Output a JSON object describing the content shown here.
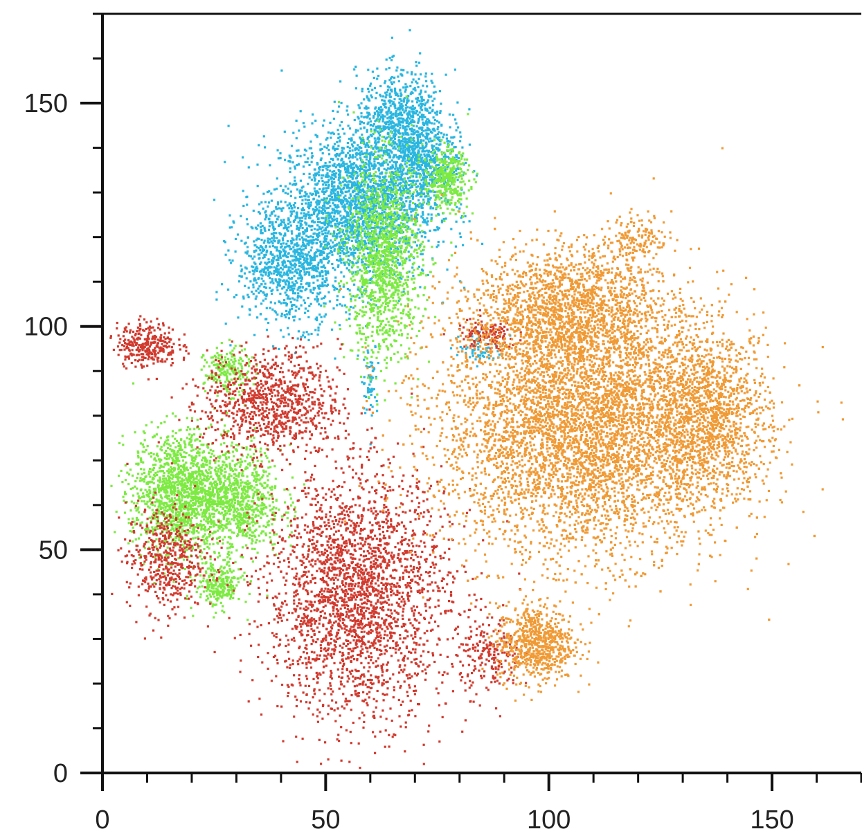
{
  "chart_data": {
    "type": "scatter",
    "title": "",
    "xlabel": "",
    "ylabel": "",
    "xlim": [
      0,
      170
    ],
    "ylim": [
      0,
      170
    ],
    "x_ticks": [
      0,
      50,
      100,
      150
    ],
    "y_ticks": [
      0,
      50,
      100,
      150
    ],
    "x_minor_step": 10,
    "y_minor_step": 10,
    "grid": false,
    "legend": "none",
    "series": [
      {
        "color": "#29b6e0",
        "clusters": [
          {
            "cx": 57,
            "cy": 127,
            "sx": 10,
            "sy": 10,
            "n": 2200
          },
          {
            "cx": 67,
            "cy": 145,
            "sx": 6,
            "sy": 7,
            "n": 900
          },
          {
            "cx": 42,
            "cy": 114,
            "sx": 7,
            "sy": 8,
            "n": 900
          },
          {
            "cx": 72,
            "cy": 135,
            "sx": 5,
            "sy": 5,
            "n": 400
          },
          {
            "cx": 60,
            "cy": 88,
            "sx": 1,
            "sy": 5,
            "n": 60
          },
          {
            "cx": 85,
            "cy": 95,
            "sx": 3,
            "sy": 2,
            "n": 60
          }
        ]
      },
      {
        "color": "#7dea42",
        "clusters": [
          {
            "cx": 63,
            "cy": 115,
            "sx": 5,
            "sy": 13,
            "n": 1300
          },
          {
            "cx": 77,
            "cy": 133,
            "sx": 3,
            "sy": 4,
            "n": 350
          },
          {
            "cx": 17,
            "cy": 63,
            "sx": 6,
            "sy": 8,
            "n": 1300
          },
          {
            "cx": 30,
            "cy": 61,
            "sx": 6,
            "sy": 7,
            "n": 900
          },
          {
            "cx": 26,
            "cy": 42,
            "sx": 3,
            "sy": 3,
            "n": 250
          },
          {
            "cx": 28,
            "cy": 90,
            "sx": 3,
            "sy": 3,
            "n": 200
          }
        ]
      },
      {
        "color": "#d13a2e",
        "clusters": [
          {
            "cx": 57,
            "cy": 40,
            "sx": 12,
            "sy": 16,
            "n": 2600
          },
          {
            "cx": 38,
            "cy": 83,
            "sx": 9,
            "sy": 7,
            "n": 900
          },
          {
            "cx": 14,
            "cy": 48,
            "sx": 5,
            "sy": 7,
            "n": 500
          },
          {
            "cx": 10,
            "cy": 96,
            "sx": 4,
            "sy": 3,
            "n": 300
          },
          {
            "cx": 87,
            "cy": 26,
            "sx": 4,
            "sy": 5,
            "n": 200
          },
          {
            "cx": 86,
            "cy": 98,
            "sx": 4,
            "sy": 2,
            "n": 120
          }
        ]
      },
      {
        "color": "#f09a35",
        "clusters": [
          {
            "cx": 108,
            "cy": 78,
            "sx": 19,
            "sy": 17,
            "n": 6500
          },
          {
            "cx": 136,
            "cy": 80,
            "sx": 8,
            "sy": 11,
            "n": 1200
          },
          {
            "cx": 104,
            "cy": 104,
            "sx": 12,
            "sy": 8,
            "n": 1500
          },
          {
            "cx": 97,
            "cy": 29,
            "sx": 5,
            "sy": 5,
            "n": 700
          },
          {
            "cx": 120,
            "cy": 120,
            "sx": 4,
            "sy": 3,
            "n": 150
          }
        ]
      }
    ]
  }
}
